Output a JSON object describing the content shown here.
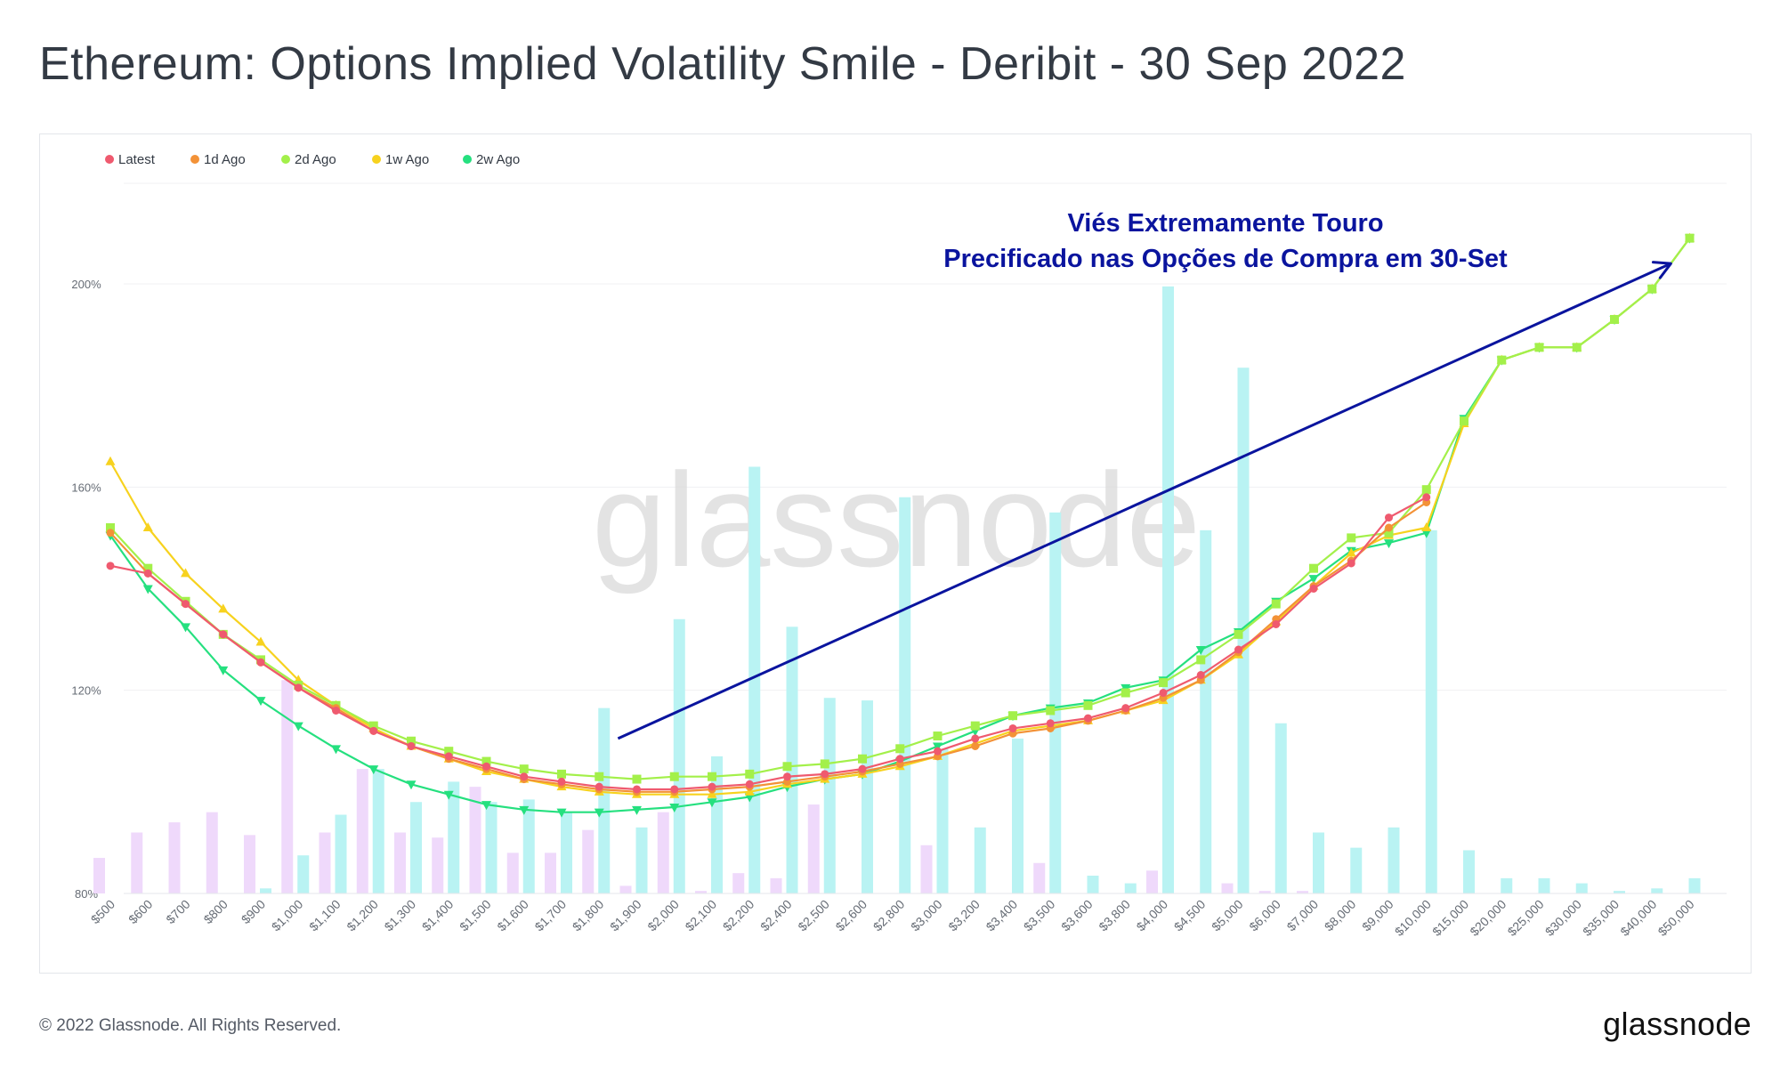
{
  "title": "Ethereum: Options Implied Volatility Smile - Deribit - 30 Sep 2022",
  "footer": {
    "copyright": "© 2022 Glassnode. All Rights Reserved.",
    "logo": "glassnode"
  },
  "watermark": "glassnode",
  "colors": {
    "latest": "#ef5a6f",
    "d1": "#f39237",
    "d2": "#a3f04a",
    "w1": "#f7d21e",
    "w2": "#25e07f",
    "bar_a": "#b9f3f3",
    "bar_b": "#efd9fb",
    "annotation": "#0a149e",
    "grid": "#f0f1f3",
    "axis_text": "#666c75"
  },
  "chart_data": {
    "type": "line",
    "legend_position": "top-left",
    "grid": true,
    "ylim": [
      80,
      210
    ],
    "yticks": [
      80,
      120,
      160,
      200
    ],
    "ytick_labels": [
      "80%",
      "120%",
      "160%",
      "200%"
    ],
    "categories": [
      "$500",
      "$600",
      "$700",
      "$800",
      "$900",
      "$1,000",
      "$1,100",
      "$1,200",
      "$1,300",
      "$1,400",
      "$1,500",
      "$1,600",
      "$1,700",
      "$1,800",
      "$1,900",
      "$2,000",
      "$2,100",
      "$2,200",
      "$2,400",
      "$2,500",
      "$2,600",
      "$2,800",
      "$3,000",
      "$3,200",
      "$3,400",
      "$3,500",
      "$3,600",
      "$3,800",
      "$4,000",
      "$4,500",
      "$5,000",
      "$6,000",
      "$7,000",
      "$8,000",
      "$9,000",
      "$10,000",
      "$15,000",
      "$20,000",
      "$25,000",
      "$30,000",
      "$35,000",
      "$40,000",
      "$50,000"
    ],
    "series": [
      {
        "name": "Latest",
        "color_key": "latest",
        "marker": "circle",
        "values": [
          144.5,
          143,
          137,
          131,
          125.5,
          120.5,
          116,
          112,
          109,
          107,
          105,
          103,
          102,
          101,
          100.5,
          100.5,
          101,
          101.5,
          103,
          103.5,
          104.5,
          106.5,
          108,
          110.5,
          112.5,
          113.5,
          114.5,
          116.5,
          119.5,
          123,
          128,
          133,
          140,
          145,
          154,
          158,
          null,
          null,
          null,
          null,
          null,
          null,
          null
        ]
      },
      {
        "name": "1d Ago",
        "color_key": "d1",
        "marker": "circle",
        "values": [
          151,
          143,
          137,
          131,
          125.5,
          120.5,
          116.5,
          112,
          109,
          106.5,
          104.5,
          102.5,
          101.5,
          100.5,
          100,
          100,
          100.5,
          101,
          102,
          103,
          104,
          105.5,
          107,
          109,
          111.5,
          112.5,
          114,
          116,
          118.5,
          122,
          127.5,
          134,
          140.5,
          145.5,
          152,
          157,
          null,
          null,
          null,
          null,
          null,
          null,
          null
        ]
      },
      {
        "name": "2d Ago",
        "color_key": "d2",
        "marker": "square",
        "values": [
          152,
          144,
          137.5,
          131,
          126,
          121,
          117,
          113,
          110,
          108,
          106,
          104.5,
          103.5,
          103,
          102.5,
          103,
          103,
          103.5,
          105,
          105.5,
          106.5,
          108.5,
          111,
          113,
          115,
          116,
          117,
          119.5,
          121.5,
          126,
          131,
          137,
          144,
          150,
          151,
          159.5,
          173,
          185,
          187.5,
          187.5,
          193,
          199,
          209
        ]
      },
      {
        "name": "1w Ago",
        "color_key": "w1",
        "marker": "triangle-up",
        "values": [
          165,
          152,
          143,
          136,
          129.5,
          122,
          117,
          112.5,
          109,
          106.5,
          104,
          102.5,
          101,
          100,
          99.5,
          99.5,
          99.5,
          100,
          101.5,
          102.5,
          103.5,
          105,
          107,
          109.5,
          112,
          113,
          114,
          116,
          118,
          122,
          127,
          133.5,
          140.5,
          147,
          150.5,
          152,
          172.5,
          185,
          187.5,
          187.5,
          193,
          199,
          209
        ]
      },
      {
        "name": "2w Ago",
        "color_key": "w2",
        "marker": "triangle-down",
        "values": [
          150.5,
          140,
          132.5,
          124,
          118,
          113,
          108.5,
          104.5,
          101.5,
          99.5,
          97.5,
          96.5,
          96,
          96,
          96.5,
          97,
          98,
          99,
          101,
          102.5,
          103.5,
          106,
          109,
          112,
          115,
          116.5,
          117.5,
          120.5,
          122,
          128,
          131.5,
          137.5,
          142,
          147.5,
          149,
          151,
          173.5,
          185,
          187.5,
          187.5,
          193,
          199,
          209
        ]
      }
    ],
    "bars": {
      "series_a": [
        null,
        null,
        null,
        null,
        81,
        87.5,
        95.5,
        104.5,
        98,
        102,
        98,
        98.5,
        96,
        116.5,
        93,
        134,
        107,
        164,
        132.5,
        118.5,
        118,
        158,
        108.5,
        93,
        110.5,
        155,
        83.5,
        82,
        199.5,
        151.5,
        183.5,
        113.5,
        92,
        89,
        93,
        151.5,
        88.5,
        83,
        83,
        82,
        80.5,
        81,
        83
      ],
      "series_b": [
        87,
        92,
        94,
        96,
        91.5,
        122,
        92,
        104.5,
        92,
        91,
        101,
        88,
        88,
        92.5,
        81.5,
        96,
        80.5,
        84,
        83,
        97.5,
        80,
        null,
        89.5,
        null,
        null,
        86,
        null,
        null,
        84.5,
        null,
        82,
        80.5,
        80.5,
        null,
        null,
        null,
        null,
        null,
        null,
        null,
        null,
        null,
        null
      ]
    },
    "annotation": {
      "lines": [
        "Viés Extremamente Touro",
        "Precificado nas Opções de Compra em 30-Set"
      ],
      "arrow_from": {
        "category_index": 13.5,
        "value": 110.5
      },
      "arrow_to": {
        "category_index": 41.5,
        "value": 204
      }
    }
  }
}
